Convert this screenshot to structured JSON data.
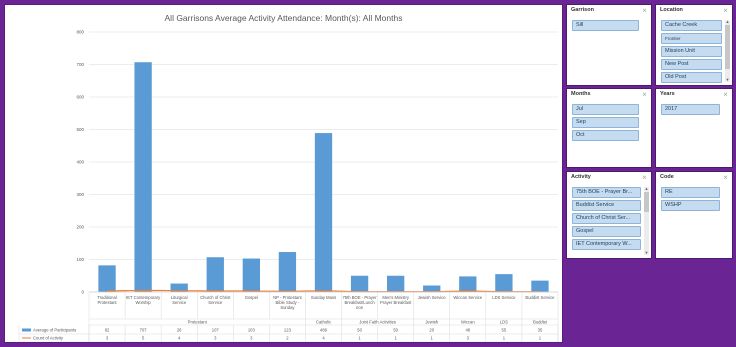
{
  "chart_data": {
    "type": "bar",
    "title": "All Garrisons Average Activity Attendance:  Month(s): All Months",
    "categories": [
      "Traditional Protestant",
      "IET Contemporary Worship",
      "Liturgical Service",
      "Church of Christ Service",
      "Gospel",
      "NP - Protestant Bible Study - Sunday",
      "Sunday Mass",
      "75th BOE - Prayer Breakfast/Lunch eon",
      "Men's Ministry Prayer Breakfast",
      "Jewish Service",
      "Wiccan Service",
      "LDS Service",
      "Buddist Service"
    ],
    "groups": [
      {
        "name": "Protestant",
        "span": 6
      },
      {
        "name": "Catholic",
        "span": 1
      },
      {
        "name": "Joint Faith Activities",
        "span": 2
      },
      {
        "name": "Jewish",
        "span": 1
      },
      {
        "name": "Wiccan",
        "span": 1
      },
      {
        "name": "LDS",
        "span": 1
      },
      {
        "name": "Buddist",
        "span": 1
      }
    ],
    "series": [
      {
        "name": "Average of Participants",
        "type": "bar",
        "color": "#5b9bd5",
        "values": [
          82,
          707,
          26,
          107,
          103,
          123,
          489,
          50,
          50,
          20,
          48,
          55,
          35
        ]
      },
      {
        "name": "Count of Activity",
        "type": "line",
        "color": "#ed7d31",
        "values": [
          3,
          5,
          4,
          3,
          3,
          2,
          4,
          1,
          1,
          1,
          3,
          1,
          1
        ]
      }
    ],
    "yticks": [
      0,
      100,
      200,
      300,
      400,
      500,
      600,
      700,
      800
    ],
    "ylim": [
      0,
      800
    ],
    "grid": true,
    "legend": "table-bottom"
  },
  "slicers": {
    "garrison": {
      "title": "Garrison",
      "items": [
        "Sill"
      ]
    },
    "location": {
      "title": "Location",
      "items": [
        "Cache Creek",
        "Frontier",
        "Mission Unit",
        "New Post",
        "Old Post"
      ]
    },
    "months": {
      "title": "Months",
      "items": [
        "Jul",
        "Sep",
        "Oct"
      ]
    },
    "years": {
      "title": "Years",
      "items": [
        "2017"
      ]
    },
    "activity": {
      "title": "Activity",
      "items": [
        "75th BOE - Prayer Br...",
        "Buddist Service",
        "Church of Christ Ser...",
        "Gospel",
        "IET Contemporary W..."
      ]
    },
    "code": {
      "title": "Code",
      "items": [
        "RE",
        "WSHP"
      ]
    }
  },
  "icons": {
    "clear_filter": "clear-filter-icon",
    "scroll_up": "scroll-up-icon",
    "scroll_down": "scroll-down-icon"
  }
}
